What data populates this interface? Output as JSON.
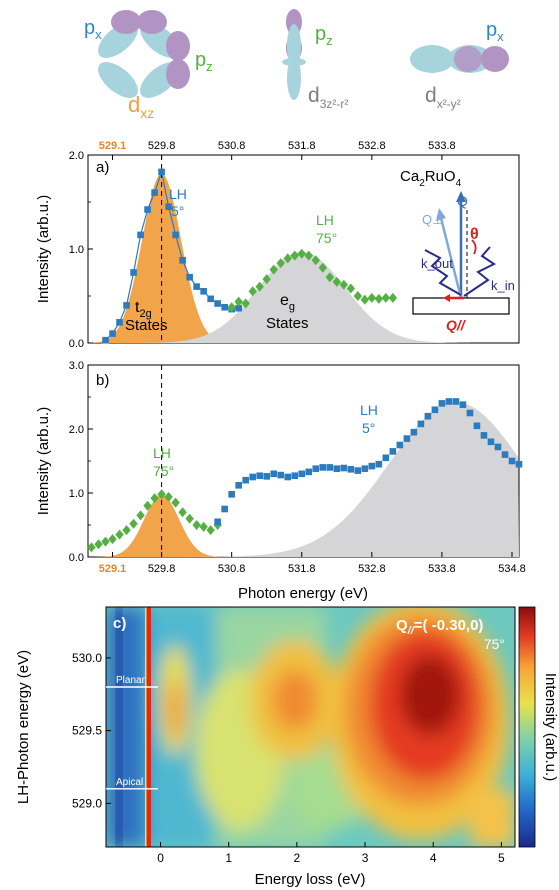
{
  "orbitals": [
    {
      "main": "d",
      "sub": "xz",
      "color": "#f0a040",
      "orbital_labels": [
        "p",
        "p"
      ],
      "orbital_subs": [
        "x",
        "z"
      ]
    },
    {
      "main": "d",
      "sub": "3z²-r²",
      "color": "#808080",
      "orbital_labels": [
        "p"
      ],
      "orbital_subs": [
        "z"
      ]
    },
    {
      "main": "d",
      "sub": "x²-y²",
      "color": "#808080",
      "orbital_labels": [
        "p"
      ],
      "orbital_subs": [
        "x"
      ]
    }
  ],
  "colors": {
    "px_label": "#2a8ac8",
    "pz_label": "#55b043",
    "lobe_purple": "#b294c4",
    "lobe_cyan": "#a7d3dd",
    "orange_fill": "#f2a44a",
    "gray_fill": "#d5d5d7",
    "blue_marker": "#2c7bbf",
    "green_marker": "#55b043",
    "top_axis_highlight": "#e8842a"
  },
  "chart_data": [
    {
      "panel": "a)",
      "type": "scatter",
      "top_axis_ticks": [
        "529.1",
        "529.8",
        "530.8",
        "531.8",
        "532.8",
        "533.8"
      ],
      "top_axis_tick_values": [
        529.1,
        529.8,
        530.8,
        531.8,
        532.8,
        533.8
      ],
      "xlim": [
        528.75,
        534.9
      ],
      "ylim": [
        0,
        2.0
      ],
      "ylabel": "Intensity (arb.u.)",
      "yticks": [
        "0.0",
        "1.0",
        "2.0"
      ],
      "ytick_values": [
        0,
        1,
        2
      ],
      "dashed_line_x": 529.8,
      "sample": "Ca₂RuO₄",
      "sample_main": "Ca",
      "sample_sub1": "2",
      "sample_mid": "RuO",
      "sample_sub2": "4",
      "series": [
        {
          "name": "LH 5°",
          "label_line1": "LH",
          "label_line2": "5°",
          "marker": "square",
          "x": [
            529.0,
            529.1,
            529.2,
            529.3,
            529.4,
            529.5,
            529.6,
            529.7,
            529.8,
            529.9,
            530.0,
            530.1,
            530.2,
            530.3,
            530.4,
            530.5,
            530.6,
            530.7,
            530.8,
            530.9
          ],
          "y": [
            0.03,
            0.1,
            0.22,
            0.4,
            0.75,
            1.15,
            1.42,
            1.6,
            1.82,
            1.45,
            1.15,
            0.88,
            0.7,
            0.6,
            0.55,
            0.47,
            0.42,
            0.38,
            0.36,
            0.37
          ]
        },
        {
          "name": "LH 75°",
          "label_line1": "LH",
          "label_line2": "75°",
          "marker": "diamond",
          "x": [
            530.8,
            530.9,
            531.0,
            531.1,
            531.2,
            531.3,
            531.4,
            531.5,
            531.6,
            531.7,
            531.8,
            531.9,
            532.0,
            532.1,
            532.2,
            532.3,
            532.4,
            532.5,
            532.6,
            532.7,
            532.8,
            532.9,
            533.0,
            533.1
          ],
          "y": [
            0.38,
            0.44,
            0.42,
            0.55,
            0.6,
            0.68,
            0.78,
            0.85,
            0.9,
            0.93,
            0.95,
            0.93,
            0.88,
            0.8,
            0.7,
            0.65,
            0.62,
            0.58,
            0.5,
            0.46,
            0.48,
            0.47,
            0.48,
            0.48
          ]
        }
      ],
      "orange_peak": {
        "center": 529.8,
        "height": 1.8,
        "label_main": "t",
        "label_sub": "2g",
        "label_line2": "States"
      },
      "gray_peak": {
        "center": 531.8,
        "height": 0.97,
        "label_main": "e",
        "label_sub": "g",
        "label_line2": "States"
      },
      "geometry_labels": [
        "Q",
        "Q⊥",
        "θ",
        "k_out",
        "k_in",
        "Q//"
      ]
    },
    {
      "panel": "b)",
      "type": "scatter",
      "xlim": [
        528.75,
        534.9
      ],
      "ylim": [
        0,
        3.0
      ],
      "ylabel": "Intensity (arb.u.)",
      "xlabel": "Photon energy (eV)",
      "yticks": [
        "0.0",
        "1.0",
        "2.0",
        "3.0"
      ],
      "ytick_values": [
        0,
        1,
        2,
        3
      ],
      "xticks": [
        "529.1",
        "529.8",
        "530.8",
        "531.8",
        "532.8",
        "533.8",
        "534.8"
      ],
      "xtick_values": [
        529.1,
        529.8,
        530.8,
        531.8,
        532.8,
        533.8,
        534.8
      ],
      "dashed_line_x": 529.8,
      "series": [
        {
          "name": "LH 75°",
          "label_line1": "LH",
          "label_line2": "75°",
          "marker": "diamond",
          "x": [
            528.8,
            528.9,
            529.0,
            529.1,
            529.2,
            529.3,
            529.4,
            529.5,
            529.6,
            529.7,
            529.8,
            529.9,
            530.0,
            530.1,
            530.2,
            530.3,
            530.4,
            530.5,
            530.6
          ],
          "y": [
            0.15,
            0.2,
            0.24,
            0.28,
            0.35,
            0.42,
            0.52,
            0.65,
            0.8,
            0.92,
            0.98,
            0.94,
            0.85,
            0.7,
            0.6,
            0.5,
            0.47,
            0.42,
            0.5
          ]
        },
        {
          "name": "LH 5°",
          "label_line1": "LH",
          "label_line2": "5°",
          "marker": "square",
          "x": [
            530.6,
            530.7,
            530.8,
            530.9,
            531.0,
            531.1,
            531.2,
            531.3,
            531.4,
            531.5,
            531.6,
            531.7,
            531.8,
            531.9,
            532.0,
            532.1,
            532.2,
            532.3,
            532.4,
            532.5,
            532.6,
            532.7,
            532.8,
            532.9,
            533.0,
            533.1,
            533.2,
            533.3,
            533.4,
            533.5,
            533.6,
            533.7,
            533.8,
            533.9,
            534.0,
            534.1,
            534.2,
            534.3,
            534.4,
            534.5,
            534.6,
            534.7,
            534.8,
            534.9
          ],
          "y": [
            0.55,
            0.75,
            0.98,
            1.12,
            1.2,
            1.25,
            1.27,
            1.26,
            1.3,
            1.28,
            1.25,
            1.27,
            1.3,
            1.33,
            1.38,
            1.4,
            1.4,
            1.38,
            1.39,
            1.37,
            1.35,
            1.38,
            1.42,
            1.45,
            1.55,
            1.65,
            1.75,
            1.85,
            1.95,
            2.08,
            2.2,
            2.3,
            2.4,
            2.43,
            2.43,
            2.38,
            2.25,
            2.05,
            1.9,
            1.8,
            1.72,
            1.6,
            1.5,
            1.45
          ]
        }
      ],
      "orange_peak": {
        "center": 529.8,
        "height": 0.97
      },
      "gray_peak": {
        "center": 534.0,
        "height": 2.42
      }
    },
    {
      "panel": "c)",
      "type": "heatmap",
      "title_main": "Q",
      "title_sub": "//",
      "title_rest": "=( -0.30,0)",
      "angle": "75°",
      "xlabel": "Energy loss (eV)",
      "ylabel": "LH-Photon energy (eV)",
      "colorbar_label": "Intensity (arb.u.)",
      "xticks": [
        "0",
        "1",
        "2",
        "3",
        "4",
        "5"
      ],
      "xtick_values": [
        0,
        1,
        2,
        3,
        4,
        5
      ],
      "yticks": [
        "530.0",
        "529.5",
        "529.0"
      ],
      "ytick_values": [
        530.0,
        529.5,
        529.0
      ],
      "xlim": [
        -0.8,
        5.2
      ],
      "ylim": [
        528.7,
        530.35
      ],
      "reference_lines": [
        {
          "label": "Planar",
          "y": 529.8
        },
        {
          "label": "Apical",
          "y": 529.1
        }
      ]
    }
  ]
}
